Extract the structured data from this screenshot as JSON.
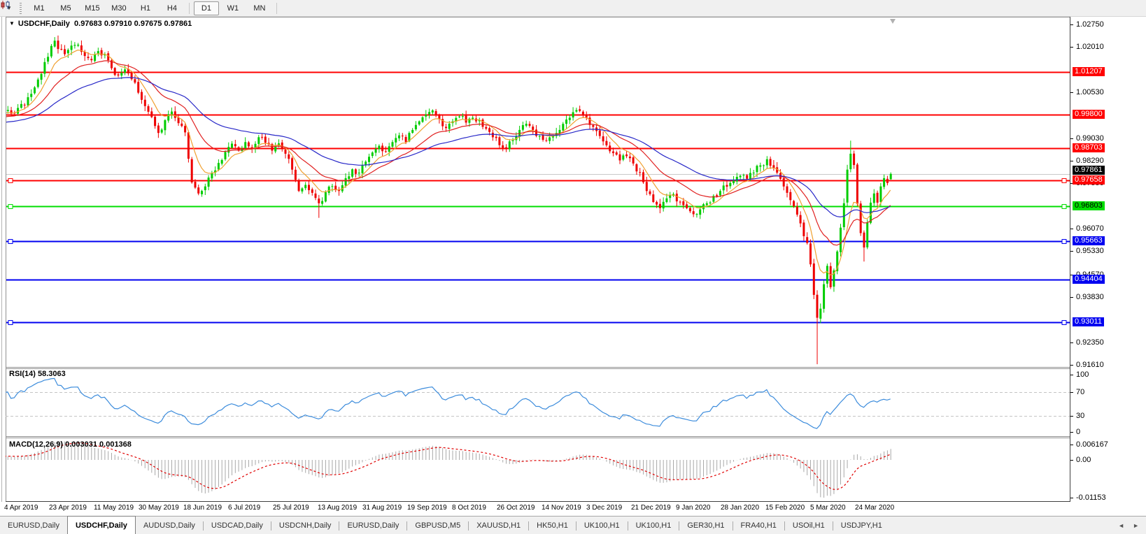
{
  "toolbar": {
    "timeframes": [
      "M1",
      "M5",
      "M15",
      "M30",
      "H1",
      "H4",
      "D1",
      "W1",
      "MN"
    ],
    "active_timeframe": "D1",
    "chart_type_icon": "candlestick-chart-icon",
    "dropdown_caret": "▼"
  },
  "header": {
    "symbol_label": "USDCHF,Daily",
    "ohlc": "0.97683 0.97910 0.97675 0.97861"
  },
  "chart_data": {
    "type": "candlestick",
    "symbol": "USDCHF",
    "timeframe": "Daily",
    "current_ohlc": {
      "o": 0.97683,
      "h": 0.9791,
      "l": 0.97675,
      "c": 0.97861
    },
    "price_line": {
      "price": 0.97861,
      "label": "0.97861"
    },
    "y_axis_ticks": [
      "1.02750",
      "1.02010",
      "1.00530",
      "0.99030",
      "0.98290",
      "0.97550",
      "0.96070",
      "0.95330",
      "0.94570",
      "0.93830",
      "0.92350",
      "0.91610"
    ],
    "levels": [
      {
        "price": 1.01207,
        "label": "1.01207",
        "color": "red",
        "handles": false
      },
      {
        "price": 0.998,
        "label": "0.99800",
        "color": "red",
        "handles": false
      },
      {
        "price": 0.98703,
        "label": "0.98703",
        "color": "red",
        "handles": false
      },
      {
        "price": 0.97658,
        "label": "0.97658",
        "color": "red",
        "handles": true
      },
      {
        "price": 0.96803,
        "label": "0.96803",
        "color": "green",
        "handles": true
      },
      {
        "price": 0.95663,
        "label": "0.95663",
        "color": "blue",
        "handles": true
      },
      {
        "price": 0.94404,
        "label": "0.94404",
        "color": "blue",
        "handles": false
      },
      {
        "price": 0.93011,
        "label": "0.93011",
        "color": "blue",
        "handles": true
      }
    ],
    "x_dates": [
      "4 Apr 2019",
      "23 Apr 2019",
      "11 May 2019",
      "30 May 2019",
      "18 Jun 2019",
      "6 Jul 2019",
      "25 Jul 2019",
      "13 Aug 2019",
      "31 Aug 2019",
      "19 Sep 2019",
      "8 Oct 2019",
      "26 Oct 2019",
      "14 Nov 2019",
      "3 Dec 2019",
      "21 Dec 2019",
      "9 Jan 2020",
      "28 Jan 2020",
      "15 Feb 2020",
      "5 Mar 2020",
      "24 Mar 2020"
    ],
    "close_keypoints": [
      [
        0,
        0.9992
      ],
      [
        2,
        0.9983
      ],
      [
        4,
        1.0002
      ],
      [
        6,
        1.0012
      ],
      [
        8,
        1.0048
      ],
      [
        10,
        1.0095
      ],
      [
        12,
        1.0152
      ],
      [
        14,
        1.0205
      ],
      [
        15,
        1.0222
      ],
      [
        16,
        1.0195
      ],
      [
        18,
        1.0178
      ],
      [
        20,
        1.0206
      ],
      [
        22,
        1.0209
      ],
      [
        24,
        1.0172
      ],
      [
        26,
        1.0158
      ],
      [
        28,
        1.0188
      ],
      [
        30,
        1.0178
      ],
      [
        32,
        1.0132
      ],
      [
        34,
        1.0108
      ],
      [
        36,
        1.0128
      ],
      [
        38,
        1.0096
      ],
      [
        40,
        1.0052
      ],
      [
        42,
        1.0008
      ],
      [
        44,
        0.9972
      ],
      [
        46,
        0.992
      ],
      [
        48,
        0.9962
      ],
      [
        50,
        0.999
      ],
      [
        52,
        0.9952
      ],
      [
        54,
        0.9922
      ],
      [
        56,
        0.9758
      ],
      [
        58,
        0.9722
      ],
      [
        60,
        0.9745
      ],
      [
        62,
        0.9788
      ],
      [
        64,
        0.9822
      ],
      [
        66,
        0.9858
      ],
      [
        68,
        0.9885
      ],
      [
        70,
        0.9862
      ],
      [
        72,
        0.989
      ],
      [
        74,
        0.9868
      ],
      [
        76,
        0.9906
      ],
      [
        78,
        0.9888
      ],
      [
        80,
        0.9862
      ],
      [
        82,
        0.9886
      ],
      [
        84,
        0.9852
      ],
      [
        86,
        0.98
      ],
      [
        88,
        0.973
      ],
      [
        90,
        0.975
      ],
      [
        92,
        0.9724
      ],
      [
        94,
        0.969
      ],
      [
        96,
        0.9726
      ],
      [
        98,
        0.9746
      ],
      [
        100,
        0.973
      ],
      [
        102,
        0.9772
      ],
      [
        104,
        0.9801
      ],
      [
        106,
        0.979
      ],
      [
        108,
        0.9826
      ],
      [
        110,
        0.9856
      ],
      [
        112,
        0.9878
      ],
      [
        114,
        0.986
      ],
      [
        116,
        0.989
      ],
      [
        118,
        0.9912
      ],
      [
        120,
        0.989
      ],
      [
        122,
        0.993
      ],
      [
        124,
        0.9958
      ],
      [
        126,
        0.998
      ],
      [
        128,
        0.9994
      ],
      [
        130,
        0.9966
      ],
      [
        132,
        0.9936
      ],
      [
        134,
        0.9958
      ],
      [
        136,
        0.9974
      ],
      [
        138,
        0.9954
      ],
      [
        140,
        0.997
      ],
      [
        142,
        0.9962
      ],
      [
        144,
        0.9934
      ],
      [
        146,
        0.9906
      ],
      [
        148,
        0.988
      ],
      [
        150,
        0.987
      ],
      [
        152,
        0.9896
      ],
      [
        154,
        0.993
      ],
      [
        156,
        0.995
      ],
      [
        158,
        0.993
      ],
      [
        160,
        0.991
      ],
      [
        162,
        0.9894
      ],
      [
        164,
        0.991
      ],
      [
        166,
        0.993
      ],
      [
        168,
        0.9964
      ],
      [
        170,
        0.9988
      ],
      [
        172,
        0.9992
      ],
      [
        174,
        0.997
      ],
      [
        176,
        0.994
      ],
      [
        178,
        0.991
      ],
      [
        180,
        0.988
      ],
      [
        182,
        0.9854
      ],
      [
        184,
        0.983
      ],
      [
        186,
        0.9844
      ],
      [
        188,
        0.982
      ],
      [
        190,
        0.979
      ],
      [
        192,
        0.973
      ],
      [
        194,
        0.9694
      ],
      [
        196,
        0.9674
      ],
      [
        198,
        0.9706
      ],
      [
        200,
        0.972
      ],
      [
        202,
        0.9694
      ],
      [
        204,
        0.9674
      ],
      [
        206,
        0.9654
      ],
      [
        208,
        0.967
      ],
      [
        210,
        0.969
      ],
      [
        212,
        0.9714
      ],
      [
        214,
        0.973
      ],
      [
        216,
        0.9744
      ],
      [
        218,
        0.9764
      ],
      [
        220,
        0.978
      ],
      [
        222,
        0.977
      ],
      [
        224,
        0.979
      ],
      [
        226,
        0.9814
      ],
      [
        228,
        0.9834
      ],
      [
        230,
        0.9806
      ],
      [
        232,
        0.977
      ],
      [
        234,
        0.9724
      ],
      [
        236,
        0.968
      ],
      [
        238,
        0.9624
      ],
      [
        240,
        0.956
      ],
      [
        241,
        0.949
      ],
      [
        242,
        0.939
      ],
      [
        243,
        0.9315
      ],
      [
        244,
        0.9345
      ],
      [
        245,
        0.9425
      ],
      [
        246,
        0.9485
      ],
      [
        247,
        0.9415
      ],
      [
        248,
        0.947
      ],
      [
        249,
        0.9532
      ],
      [
        250,
        0.961
      ],
      [
        251,
        0.969
      ],
      [
        252,
        0.98
      ],
      [
        253,
        0.9852
      ],
      [
        254,
        0.9815
      ],
      [
        255,
        0.9688
      ],
      [
        256,
        0.9592
      ],
      [
        257,
        0.9545
      ],
      [
        258,
        0.9628
      ],
      [
        259,
        0.9692
      ],
      [
        260,
        0.9722
      ],
      [
        261,
        0.9692
      ],
      [
        262,
        0.9745
      ],
      [
        263,
        0.9772
      ],
      [
        264,
        0.9756
      ],
      [
        265,
        0.9786
      ]
    ],
    "spikes": [
      {
        "i": 15,
        "high": 1.0227
      },
      {
        "i": 94,
        "low": 0.9642
      },
      {
        "i": 207,
        "low": 0.9643
      },
      {
        "i": 243,
        "low": 0.9163
      },
      {
        "i": 253,
        "high": 0.9895
      },
      {
        "i": 257,
        "low": 0.9499
      }
    ],
    "moving_averages": [
      {
        "name": "fast",
        "period": 8,
        "color_key": "ma_fast"
      },
      {
        "name": "mid",
        "period": 21,
        "color_key": "ma_mid"
      },
      {
        "name": "slow",
        "period": 48,
        "color_key": "ma_slow"
      }
    ]
  },
  "rsi": {
    "name": "RSI(14)",
    "value": "58.3063",
    "axis": [
      "100",
      "70",
      "30",
      "0"
    ],
    "upper_level": 70,
    "lower_level": 30,
    "period": 14
  },
  "macd": {
    "name": "MACD(12,26,9)",
    "values": "0.003031 0.001368",
    "axis_top": "0.006167",
    "axis_zero": "0.00",
    "axis_bottom": "-0.01153",
    "fast": 12,
    "slow": 26,
    "signal": 9
  },
  "tabs": {
    "items": [
      "EURUSD,Daily",
      "USDCHF,Daily",
      "AUDUSD,Daily",
      "USDCAD,Daily",
      "USDCNH,Daily",
      "EURUSD,Daily",
      "GBPUSD,M5",
      "XAUUSD,H1",
      "HK50,H1",
      "UK100,H1",
      "UK100,H1",
      "GER30,H1",
      "FRA40,H1",
      "USOil,H1",
      "USDJPY,H1"
    ],
    "active_index": 1,
    "scroll_left": "◄",
    "scroll_right": "►"
  },
  "colors": {
    "up": "#00CC00",
    "down": "#EE0000",
    "ma_fast": "#F0A030",
    "ma_mid": "#E02020",
    "ma_slow": "#2828C8",
    "red": "#FF0000",
    "green": "#00DD00",
    "blue": "#0000F0",
    "rsi_line": "#3C8CDC",
    "rsi_levels": "#C4C4C4",
    "macd_bar": "#A8A8A8",
    "macd_signal": "#E00000",
    "price_line": "#C8C8C8"
  }
}
